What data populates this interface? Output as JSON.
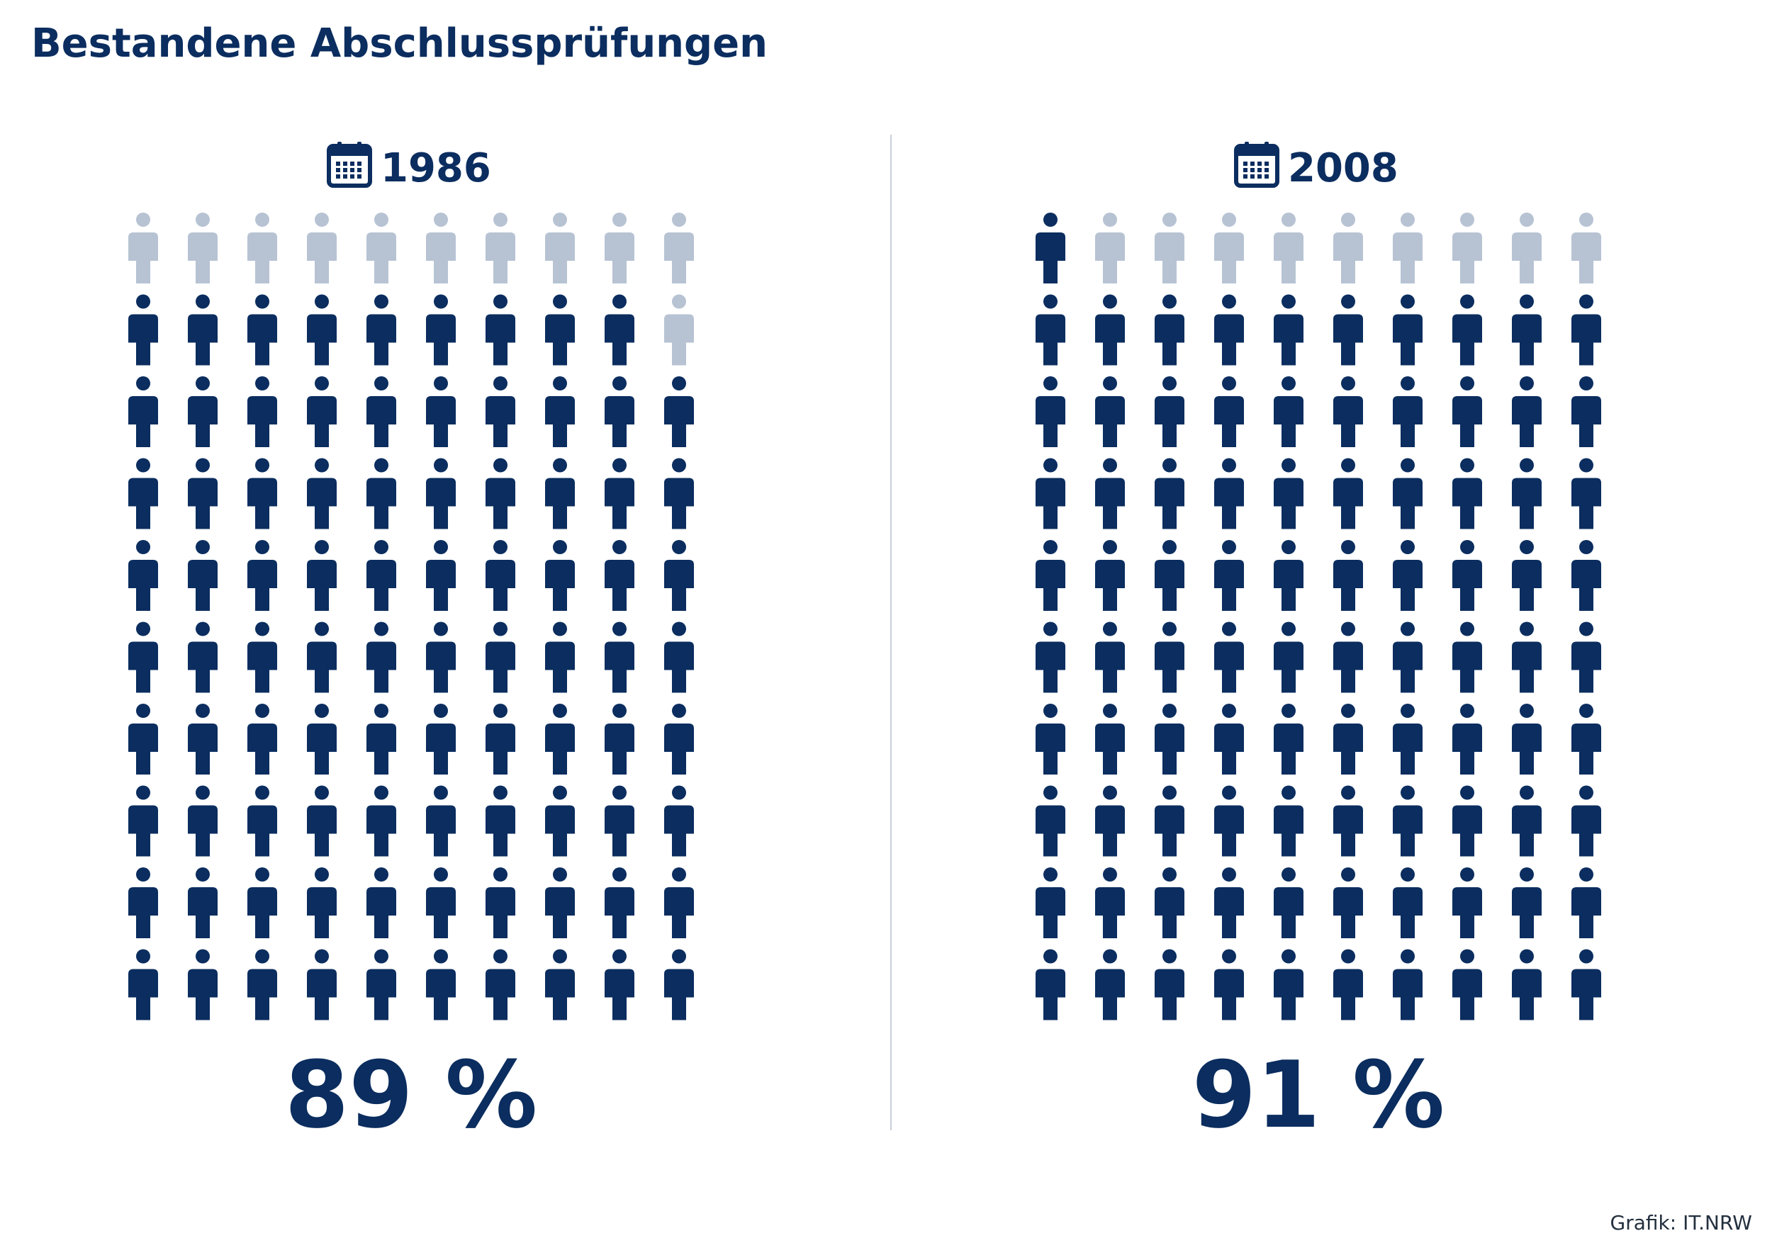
{
  "title": "Bestandene Abschlussprüfungen",
  "credit": "Grafik: IT.NRW",
  "colors": {
    "primary": "#0b2d5f",
    "muted": "#b7c3d3",
    "divider": "#c9cfd8"
  },
  "chart_data": {
    "type": "pictogram",
    "unit_label": "%",
    "total_icons": 100,
    "series": [
      {
        "name": "1986",
        "value": 89,
        "value_label": "89 %",
        "icon": "calendar-icon"
      },
      {
        "name": "2008",
        "value": 91,
        "value_label": "91 %",
        "icon": "calendar-icon"
      }
    ]
  }
}
